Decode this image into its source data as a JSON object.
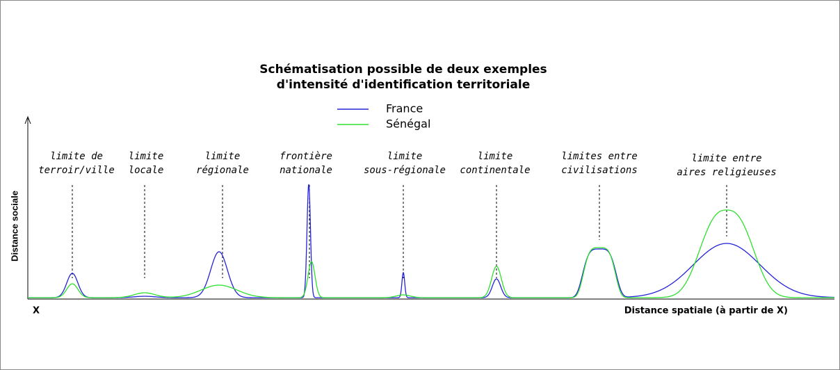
{
  "title": [
    "Schématisation possible de deux exemples",
    "d'intensité d'identification territoriale"
  ],
  "legend": [
    {
      "name": "France",
      "color": "#2323d8"
    },
    {
      "name": "Sénégal",
      "color": "#2ee02e"
    }
  ],
  "y_axis_label": "Distance sociale",
  "origin_label": "X",
  "x_axis_label": "Distance spatiale (à partir de X)",
  "boundaries": [
    {
      "label": [
        "limite de",
        "terroir/ville"
      ]
    },
    {
      "label": [
        "limite",
        "locale"
      ]
    },
    {
      "label": [
        "limite",
        "régionale"
      ]
    },
    {
      "label": [
        "frontière",
        "nationale"
      ]
    },
    {
      "label": [
        "limite",
        "sous-régionale"
      ]
    },
    {
      "label": [
        "limite",
        "continentale"
      ]
    },
    {
      "label": [
        "limites entre",
        "civilisations"
      ]
    },
    {
      "label": [
        "limite entre",
        "aires religieuses"
      ]
    }
  ]
}
